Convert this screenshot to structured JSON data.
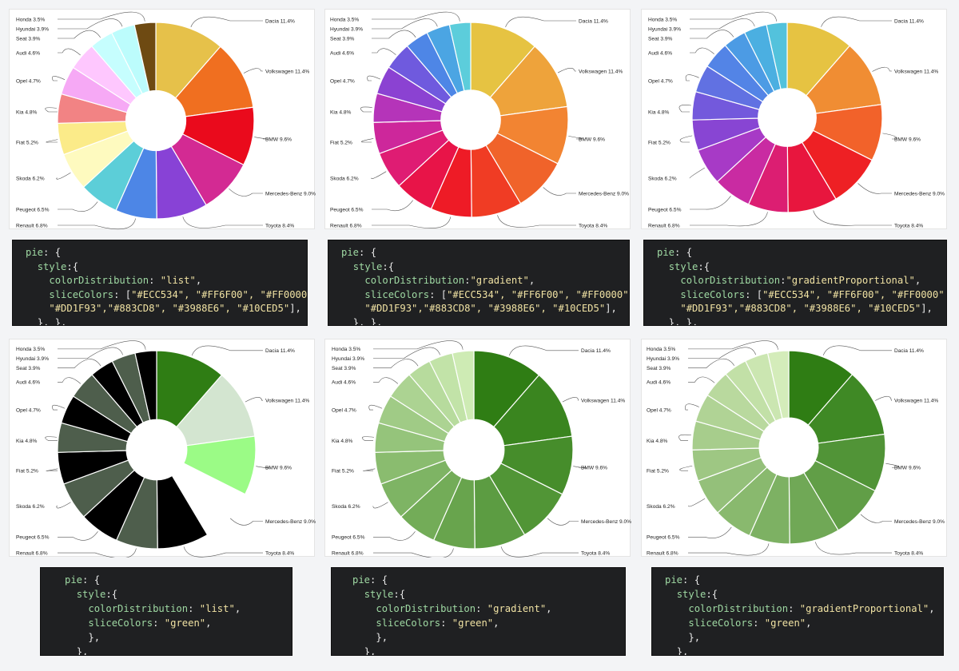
{
  "chart_data": [
    {
      "type": "pie",
      "categories": [
        "Dacia",
        "Volkswagen",
        "BMW",
        "Mercedes-Benz",
        "Toyota",
        "Renault",
        "Peugeot",
        "Skoda",
        "Fiat",
        "Kia",
        "Opel",
        "Audi",
        "Seat",
        "Hyundai",
        "Honda"
      ],
      "labels": [
        "Dacia 11.4%",
        "Volkswagen 11.4%",
        "BMW 9.6%",
        "Mercedes-Benz 9.0%",
        "Toyota 8.4%",
        "Renault 6.8%",
        "Peugeot 6.5%",
        "Skoda 6.2%",
        "Fiat 5.2%",
        "Kia 4.8%",
        "Opel 4.7%",
        "Audi 4.6%",
        "Seat 3.9%",
        "Hyundai 3.9%",
        "Honda 3.5%"
      ],
      "values": [
        11.4,
        11.4,
        9.6,
        9.0,
        8.4,
        6.8,
        6.5,
        6.2,
        5.2,
        4.8,
        4.7,
        4.6,
        3.9,
        3.9,
        3.5
      ],
      "colorDistribution": "list",
      "colors": [
        "#E6C14A",
        "#F06F20",
        "#EA0A1C",
        "#D32A93",
        "#8842D6",
        "#4D86E6",
        "#5CCED8",
        "#FEFABF",
        "#FBEB89",
        "#F28384",
        "#F6A9F5",
        "#FEC7FE",
        "#C6FEFE",
        "#BCFCFC",
        "#6E4A12"
      ]
    },
    {
      "type": "pie",
      "categories": [
        "Dacia",
        "Volkswagen",
        "BMW",
        "Mercedes-Benz",
        "Toyota",
        "Renault",
        "Peugeot",
        "Skoda",
        "Fiat",
        "Kia",
        "Opel",
        "Audi",
        "Seat",
        "Hyundai",
        "Honda"
      ],
      "labels": [
        "Dacia 11.4%",
        "Volkswagen 11.4%",
        "BMW 9.6%",
        "Mercedes-Benz 9.0%",
        "Toyota 8.4%",
        "Renault 6.8%",
        "Peugeot 6.5%",
        "Skoda 6.2%",
        "Fiat 5.2%",
        "Kia 4.8%",
        "Opel 4.7%",
        "Audi 4.6%",
        "Seat 3.9%",
        "Hyundai 3.9%",
        "Honda 3.5%"
      ],
      "values": [
        11.4,
        11.4,
        9.6,
        9.0,
        8.4,
        6.8,
        6.5,
        6.2,
        5.2,
        4.8,
        4.7,
        4.6,
        3.9,
        3.9,
        3.5
      ],
      "colorDistribution": "gradient",
      "colors": [
        "#E6C342",
        "#EEA33B",
        "#F28432",
        "#F0632A",
        "#F03C24",
        "#EE1B26",
        "#E81448",
        "#DF1C73",
        "#CD279B",
        "#B534B9",
        "#8B42D2",
        "#6F5ADE",
        "#4E86E6",
        "#4BA5E3",
        "#5CCDDB"
      ]
    },
    {
      "type": "pie",
      "categories": [
        "Dacia",
        "Volkswagen",
        "BMW",
        "Mercedes-Benz",
        "Toyota",
        "Renault",
        "Peugeot",
        "Skoda",
        "Fiat",
        "Kia",
        "Opel",
        "Audi",
        "Seat",
        "Hyundai",
        "Honda"
      ],
      "labels": [
        "Dacia 11.4%",
        "Volkswagen 11.4%",
        "BMW 9.6%",
        "Mercedes-Benz 9.0%",
        "Toyota 8.4%",
        "Renault 6.8%",
        "Peugeot 6.5%",
        "Skoda 6.2%",
        "Fiat 5.2%",
        "Kia 4.8%",
        "Opel 4.7%",
        "Audi 4.6%",
        "Seat 3.9%",
        "Hyundai 3.9%",
        "Honda 3.5%"
      ],
      "values": [
        11.4,
        11.4,
        9.6,
        9.0,
        8.4,
        6.8,
        6.5,
        6.2,
        5.2,
        4.8,
        4.7,
        4.6,
        3.9,
        3.9,
        3.5
      ],
      "colorDistribution": "gradientProportional",
      "colors": [
        "#E6C342",
        "#F08D33",
        "#F2622A",
        "#EE2024",
        "#E8163E",
        "#DC1E72",
        "#C92BA2",
        "#A73AC6",
        "#8845D3",
        "#7359DC",
        "#6171E2",
        "#5384E6",
        "#4C9BE4",
        "#4BAFE1",
        "#53C2DC"
      ]
    },
    {
      "type": "pie",
      "categories": [
        "Dacia",
        "Volkswagen",
        "BMW",
        "Mercedes-Benz",
        "Toyota",
        "Renault",
        "Peugeot",
        "Skoda",
        "Fiat",
        "Kia",
        "Opel",
        "Audi",
        "Seat",
        "Hyundai",
        "Honda"
      ],
      "labels": [
        "Dacia 11.4%",
        "Volkswagen 11.4%",
        "BMW 9.6%",
        "Mercedes-Benz 9.0%",
        "Toyota 8.4%",
        "Renault 6.8%",
        "Peugeot 6.5%",
        "Skoda 6.2%",
        "Fiat 5.2%",
        "Kia 4.8%",
        "Opel 4.7%",
        "Audi 4.6%",
        "Seat 3.9%",
        "Hyundai 3.9%",
        "Honda 3.5%"
      ],
      "values": [
        11.4,
        11.4,
        9.6,
        9.0,
        8.4,
        6.8,
        6.5,
        6.2,
        5.2,
        4.8,
        4.7,
        4.6,
        3.9,
        3.9,
        3.5
      ],
      "colorDistribution": "list",
      "colors": [
        "#2F7D14",
        "#D3E5D0",
        "#9BFB86",
        "#FFFFFF",
        "#000000",
        "#4E5E4C",
        "#000000",
        "#4E5E4C",
        "#000000",
        "#4E5E4C",
        "#000000",
        "#4E5E4C",
        "#000000",
        "#4E5E4C",
        "#000000"
      ]
    },
    {
      "type": "pie",
      "categories": [
        "Dacia",
        "Volkswagen",
        "BMW",
        "Mercedes-Benz",
        "Toyota",
        "Renault",
        "Peugeot",
        "Skoda",
        "Fiat",
        "Kia",
        "Opel",
        "Audi",
        "Seat",
        "Hyundai",
        "Honda"
      ],
      "labels": [
        "Dacia 11.4%",
        "Volkswagen 11.4%",
        "BMW 9.6%",
        "Mercedes-Benz 9.0%",
        "Toyota 8.4%",
        "Renault 6.8%",
        "Peugeot 6.5%",
        "Skoda 6.2%",
        "Fiat 5.2%",
        "Kia 4.8%",
        "Opel 4.7%",
        "Audi 4.6%",
        "Seat 3.9%",
        "Hyundai 3.9%",
        "Honda 3.5%"
      ],
      "values": [
        11.4,
        11.4,
        9.6,
        9.0,
        8.4,
        6.8,
        6.5,
        6.2,
        5.2,
        4.8,
        4.7,
        4.6,
        3.9,
        3.9,
        3.5
      ],
      "colorDistribution": "gradient",
      "colors": [
        "#2F7D14",
        "#3A851F",
        "#468D2B",
        "#519536",
        "#5C9C42",
        "#68A44D",
        "#73AC58",
        "#7EB464",
        "#8ABC6F",
        "#95C47B",
        "#A0CB86",
        "#ACD392",
        "#B7DB9D",
        "#C2E3A8",
        "#CEEBB4"
      ]
    },
    {
      "type": "pie",
      "categories": [
        "Dacia",
        "Volkswagen",
        "BMW",
        "Mercedes-Benz",
        "Toyota",
        "Renault",
        "Peugeot",
        "Skoda",
        "Fiat",
        "Kia",
        "Opel",
        "Audi",
        "Seat",
        "Hyundai",
        "Honda"
      ],
      "labels": [
        "Dacia 11.4%",
        "Volkswagen 11.4%",
        "BMW 9.6%",
        "Mercedes-Benz 9.0%",
        "Toyota 8.4%",
        "Renault 6.8%",
        "Peugeot 6.5%",
        "Skoda 6.2%",
        "Fiat 5.2%",
        "Kia 4.8%",
        "Opel 4.7%",
        "Audi 4.6%",
        "Seat 3.9%",
        "Hyundai 3.9%",
        "Honda 3.5%"
      ],
      "values": [
        11.4,
        11.4,
        9.6,
        9.0,
        8.4,
        6.8,
        6.5,
        6.2,
        5.2,
        4.8,
        4.7,
        4.6,
        3.9,
        3.9,
        3.5
      ],
      "colorDistribution": "gradientProportional",
      "colors": [
        "#2F7D14",
        "#3F8925",
        "#519437",
        "#619E47",
        "#70A856",
        "#7DB163",
        "#89B96E",
        "#94C07A",
        "#9EC783",
        "#A7CD8C",
        "#B0D395",
        "#B9D99E",
        "#C2E0A7",
        "#CBE6B1",
        "#D4ECBA"
      ]
    }
  ],
  "code_blocks": [
    {
      "l1_key": "pie",
      "l1_rest": ": {",
      "l2_key": "style",
      "l2_rest": ":{",
      "l3_key": "colorDistribution",
      "l3_sep": ": ",
      "l3_val": "\"list\"",
      "l3_end": ",",
      "l4_key": "sliceColors",
      "l4_sep": ": [",
      "l4_val": "\"#ECC534\", \"#FF6F00\", \"#FF0000\",",
      "l4_end": "",
      "l5_val": "\"#DD1F93\",\"#883CD8\", \"#3988E6\", \"#10CED5\"",
      "l5_end": "],",
      "l6": "}, },"
    },
    {
      "l1_key": "pie",
      "l1_rest": ": {",
      "l2_key": "style",
      "l2_rest": ":{",
      "l3_key": "colorDistribution",
      "l3_sep": ":",
      "l3_val": "\"gradient\"",
      "l3_end": ",",
      "l4_key": "sliceColors",
      "l4_sep": ": [",
      "l4_val": "\"#ECC534\", \"#FF6F00\", \"#FF0000\",",
      "l4_end": "",
      "l5_val": "\"#DD1F93\",\"#883CD8\", \"#3988E6\", \"#10CED5\"",
      "l5_end": "],",
      "l6": "}, },"
    },
    {
      "l1_key": "pie",
      "l1_rest": ": {",
      "l2_key": "style",
      "l2_rest": ":{",
      "l3_key": "colorDistribution",
      "l3_sep": ":",
      "l3_val": "\"gradientProportional\"",
      "l3_end": ",",
      "l4_key": "sliceColors",
      "l4_sep": ": [",
      "l4_val": "\"#ECC534\", \"#FF6F00\", \"#FF0000\",",
      "l4_end": "",
      "l5_val": "\"#DD1F93\",\"#883CD8\", \"#3988E6\", \"#10CED5\"",
      "l5_end": "],",
      "l6": "}, },"
    },
    {
      "l1_key": "pie",
      "l1_rest": ": {",
      "l2_key": "style",
      "l2_rest": ":{",
      "l3_key": "colorDistribution",
      "l3_sep": ": ",
      "l3_val": "\"list\"",
      "l3_end": ",",
      "l4_key": "sliceColors",
      "l4_sep": ": ",
      "l4_val": "\"green\"",
      "l4_end": ",",
      "l5_val": "",
      "l5_end": "},",
      "l6": "},"
    },
    {
      "l1_key": "pie",
      "l1_rest": ": {",
      "l2_key": "style",
      "l2_rest": ":{",
      "l3_key": "colorDistribution",
      "l3_sep": ": ",
      "l3_val": "\"gradient\"",
      "l3_end": ",",
      "l4_key": "sliceColors",
      "l4_sep": ": ",
      "l4_val": "\"green\"",
      "l4_end": ",",
      "l5_val": "",
      "l5_end": "},",
      "l6": "},"
    },
    {
      "l1_key": "pie",
      "l1_rest": ": {",
      "l2_key": "style",
      "l2_rest": ":{",
      "l3_key": "colorDistribution",
      "l3_sep": ": ",
      "l3_val": "\"gradientProportional\"",
      "l3_end": ",",
      "l4_key": "sliceColors",
      "l4_sep": ": ",
      "l4_val": "\"green\"",
      "l4_end": ",",
      "l5_val": "",
      "l5_end": "},",
      "l6": "},"
    }
  ]
}
